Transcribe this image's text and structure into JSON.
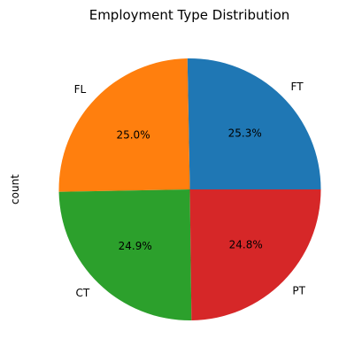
{
  "chart_data": {
    "type": "pie",
    "title": "Employment Type Distribution",
    "ylabel": "count",
    "categories": [
      "FT",
      "FL",
      "CT",
      "PT"
    ],
    "values": [
      25.3,
      25.0,
      24.9,
      24.8
    ],
    "percent_labels": [
      "25.3%",
      "25.0%",
      "24.9%",
      "24.8%"
    ],
    "colors": [
      "#1f77b4",
      "#ff7f0e",
      "#2ca02c",
      "#d62728"
    ],
    "start_angle_deg": 0,
    "direction": "counterclockwise"
  }
}
